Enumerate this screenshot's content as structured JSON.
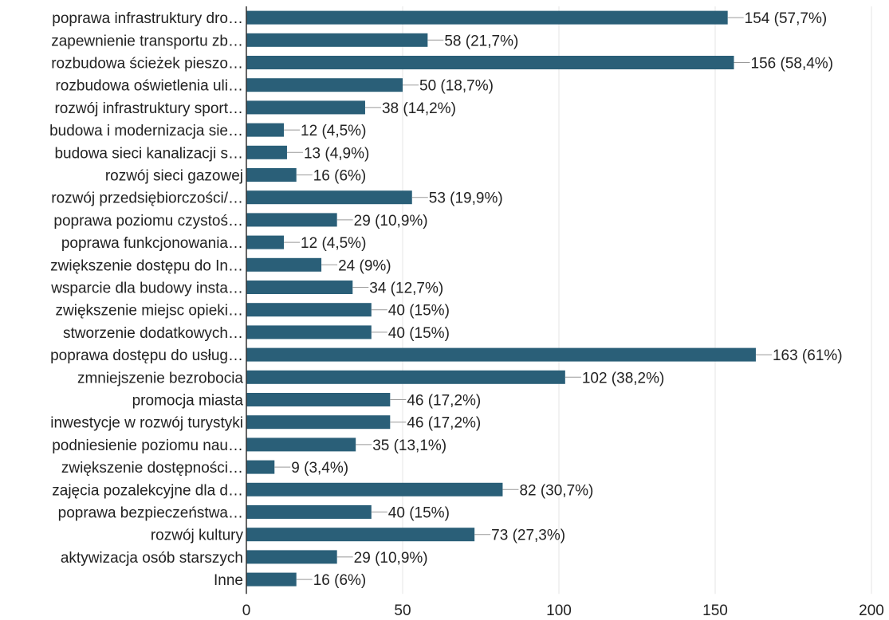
{
  "chart_data": {
    "type": "bar",
    "orientation": "horizontal",
    "categories": [
      "poprawa infrastruktury dro…",
      "zapewnienie transportu zb…",
      "rozbudowa ścieżek pieszo…",
      "rozbudowa oświetlenia uli…",
      "rozwój infrastruktury sport…",
      "budowa i modernizacja sie…",
      "budowa sieci kanalizacji s…",
      "rozwój sieci gazowej",
      "rozwój przedsiębiorczości/…",
      "poprawa poziomu czystoś…",
      "poprawa funkcjonowania…",
      "zwiększenie dostępu do In…",
      "wsparcie dla budowy insta…",
      "zwiększenie miejsc opieki…",
      "stworzenie dodatkowych…",
      "poprawa dostępu do usług…",
      "zmniejszenie bezrobocia",
      "promocja miasta",
      "inwestycje w rozwój turystyki",
      "podniesienie poziomu nau…",
      "zwiększenie dostępności…",
      "zajęcia pozalekcyjne dla d…",
      "poprawa bezpieczeństwa…",
      "rozwój kultury",
      "aktywizacja osób starszych",
      "Inne"
    ],
    "values": [
      154,
      58,
      156,
      50,
      38,
      12,
      13,
      16,
      53,
      29,
      12,
      24,
      34,
      40,
      40,
      163,
      102,
      46,
      46,
      35,
      9,
      82,
      40,
      73,
      29,
      16
    ],
    "data_labels": [
      "154 (57,7%)",
      "58 (21,7%)",
      "156 (58,4%)",
      "50 (18,7%)",
      "38 (14,2%)",
      "12 (4,5%)",
      "13 (4,9%)",
      "16 (6%)",
      "53 (19,9%)",
      "29 (10,9%)",
      "12 (4,5%)",
      "24 (9%)",
      "34 (12,7%)",
      "40 (15%)",
      "40 (15%)",
      "163 (61%)",
      "102 (38,2%)",
      "46 (17,2%)",
      "46 (17,2%)",
      "35 (13,1%)",
      "9 (3,4%)",
      "82 (30,7%)",
      "40 (15%)",
      "73 (27,3%)",
      "29 (10,9%)",
      "16 (6%)"
    ],
    "xlim": [
      0,
      200
    ],
    "xticks": [
      0,
      50,
      100,
      150,
      200
    ],
    "xtick_labels": [
      "0",
      "50",
      "100",
      "150",
      "200"
    ],
    "grid": "vertical",
    "bar_color": "#2a5f78",
    "title": "",
    "xlabel": "",
    "ylabel": ""
  }
}
